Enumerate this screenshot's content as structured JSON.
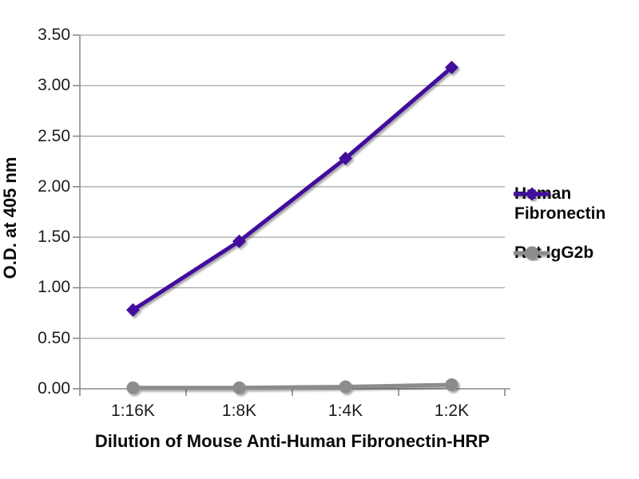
{
  "chart_data": {
    "type": "line",
    "title": "",
    "xlabel": "Dilution of Mouse Anti-Human Fibronectin-HRP",
    "ylabel": "O.D. at 405 nm",
    "categories": [
      "1:16K",
      "1:8K",
      "1:4K",
      "1:2K"
    ],
    "series": [
      {
        "name": "Human Fibronectin",
        "marker": "diamond",
        "color": "#430E9D",
        "values": [
          0.78,
          1.46,
          2.28,
          3.18
        ]
      },
      {
        "name": "Rat IgG2b",
        "marker": "circle",
        "color": "#8C8C8C",
        "values": [
          0.01,
          0.01,
          0.02,
          0.04
        ]
      }
    ],
    "ylim": [
      0,
      3.5
    ],
    "yticks": [
      "0.00",
      "0.50",
      "1.00",
      "1.50",
      "2.00",
      "2.50",
      "3.00",
      "3.50"
    ],
    "grid": true,
    "legend_position": "right"
  },
  "colors": {
    "background": "#FFFFFF",
    "gridline": "#A6A6A6",
    "axis": "#8C8C8C",
    "tick_text": "#1C1C1C",
    "title_text": "#0A0A0A"
  }
}
